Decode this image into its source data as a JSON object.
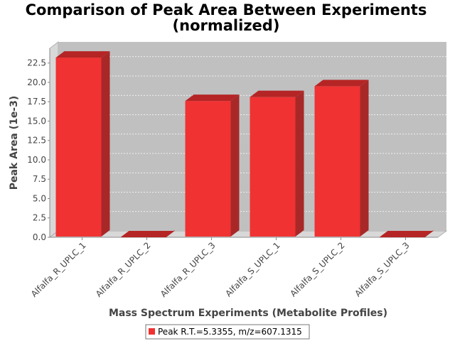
{
  "chart_data": {
    "type": "bar",
    "title": "Comparison of Peak Area Between Experiments",
    "subtitle": "(normalized)",
    "xlabel": "Mass Spectrum Experiments (Metabolite Profiles)",
    "ylabel": "Peak Area (1e-3)",
    "categories": [
      "Alfalfa_R_UPLC_1",
      "Alfalfa_R_UPLC_2",
      "Alfalfa_R_UPLC_3",
      "Alfalfa_S_UPLC_1",
      "Alfalfa_S_UPLC_2",
      "Alfalfa_S_UPLC_3"
    ],
    "series": [
      {
        "name": "Peak R.T.=5.3355, m/z=607.1315",
        "values": [
          23.2,
          0,
          17.6,
          18.1,
          19.5,
          0
        ]
      }
    ],
    "ylim": [
      0,
      24.4
    ],
    "yticks": [
      "0.0",
      "2.5",
      "5.0",
      "7.5",
      "10.0",
      "12.5",
      "15.0",
      "17.5",
      "20.0",
      "22.5"
    ],
    "ytick_values": [
      0,
      2.5,
      5,
      7.5,
      10,
      12.5,
      15,
      17.5,
      20,
      22.5
    ],
    "grid": true,
    "legend_position": "bottom",
    "colors": {
      "bar": "#f03232",
      "bar_top": "#b52525",
      "bar_side": "#a82828",
      "plot_bg": "#c0c0c0",
      "plot_wall": "#d8d8d8"
    }
  }
}
